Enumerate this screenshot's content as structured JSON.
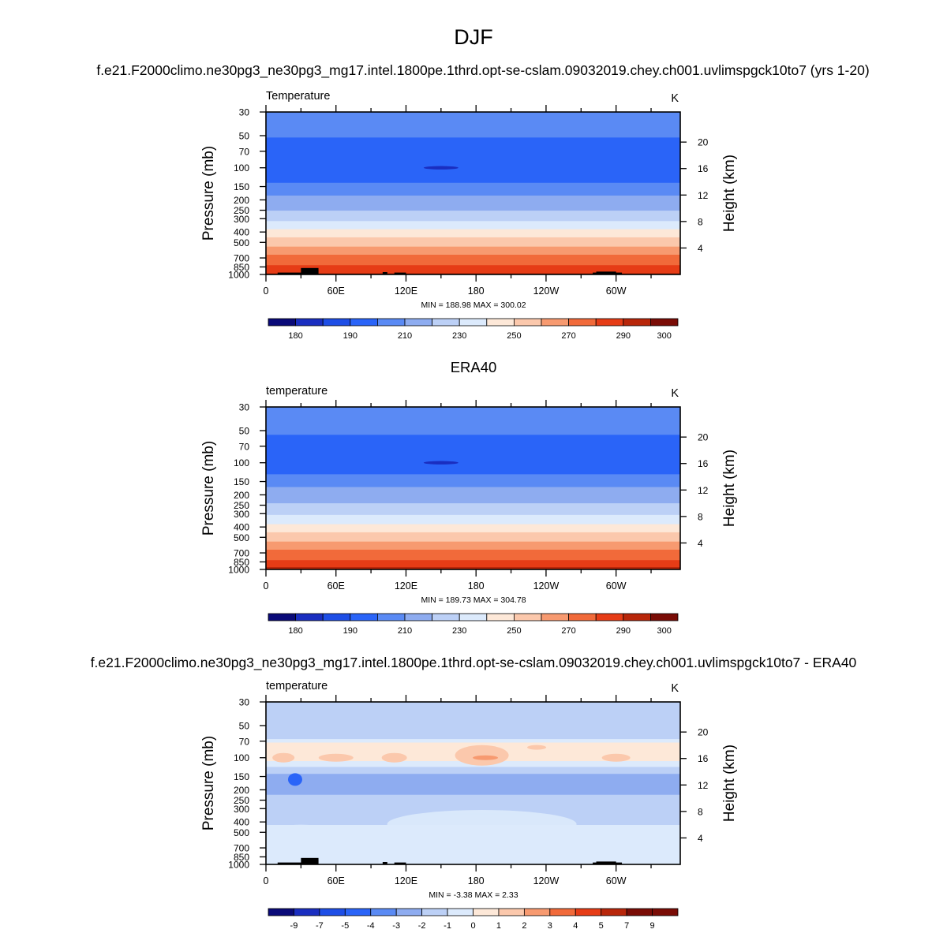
{
  "figure": {
    "season": "DJF",
    "case_title": "f.e21.F2000climo.ne30pg3_ne30pg3_mg17.intel.1800pe.1thrd.opt-se-cslam.09032019.chey.ch001.uvlimspgck10to7 (yrs 1-20)",
    "obs_title": "ERA40",
    "diff_title": "f.e21.F2000climo.ne30pg3_ne30pg3_mg17.intel.1800pe.1thrd.opt-se-cslam.09032019.chey.ch001.uvlimspgck10to7 - ERA40"
  },
  "chart_data": [
    {
      "type": "heatmap",
      "name": "model",
      "variable_label": "Temperature",
      "units": "K",
      "xlabel": "",
      "ylabel": "Pressure (mb)",
      "y2label": "Height (km)",
      "x_ticks": [
        "0",
        "60E",
        "120E",
        "180",
        "120W",
        "60W"
      ],
      "y_ticks": [
        "30",
        "50",
        "70",
        "100",
        "150",
        "200",
        "250",
        "300",
        "400",
        "500",
        "700",
        "850",
        "1000"
      ],
      "y2_ticks": [
        "20",
        "16",
        "12",
        "8",
        "4"
      ],
      "stats_text": "MIN = 188.98  MAX = 300.02",
      "levels": [
        300,
        250,
        200,
        150,
        100,
        70,
        50,
        30
      ],
      "profile": [
        {
          "p": 1000,
          "v": 297
        },
        {
          "p": 900,
          "v": 291
        },
        {
          "p": 850,
          "v": 287
        },
        {
          "p": 700,
          "v": 278
        },
        {
          "p": 600,
          "v": 270
        },
        {
          "p": 500,
          "v": 261
        },
        {
          "p": 400,
          "v": 248
        },
        {
          "p": 350,
          "v": 240
        },
        {
          "p": 300,
          "v": 233
        },
        {
          "p": 250,
          "v": 225
        },
        {
          "p": 200,
          "v": 218
        },
        {
          "p": 150,
          "v": 208
        },
        {
          "p": 120,
          "v": 200
        },
        {
          "p": 100,
          "v": 195
        },
        {
          "p": 80,
          "v": 196
        },
        {
          "p": 70,
          "v": 200
        },
        {
          "p": 55,
          "v": 204
        },
        {
          "p": 45,
          "v": 207
        },
        {
          "p": 35,
          "v": 211
        },
        {
          "p": 30,
          "v": 214
        }
      ]
    },
    {
      "type": "heatmap",
      "name": "obs",
      "variable_label": "temperature",
      "units": "K",
      "xlabel": "",
      "ylabel": "Pressure (mb)",
      "y2label": "Height (km)",
      "x_ticks": [
        "0",
        "60E",
        "120E",
        "180",
        "120W",
        "60W"
      ],
      "y_ticks": [
        "30",
        "50",
        "70",
        "100",
        "150",
        "200",
        "250",
        "300",
        "400",
        "500",
        "700",
        "850",
        "1000"
      ],
      "y2_ticks": [
        "20",
        "16",
        "12",
        "8",
        "4"
      ],
      "stats_text": "MIN = 189.73  MAX = 304.78",
      "levels": [
        300,
        250,
        200,
        150,
        100,
        70,
        50,
        30
      ],
      "profile": [
        {
          "p": 1000,
          "v": 298
        },
        {
          "p": 900,
          "v": 291
        },
        {
          "p": 850,
          "v": 287
        },
        {
          "p": 700,
          "v": 278
        },
        {
          "p": 600,
          "v": 270
        },
        {
          "p": 500,
          "v": 261
        },
        {
          "p": 400,
          "v": 248
        },
        {
          "p": 350,
          "v": 241
        },
        {
          "p": 300,
          "v": 234
        },
        {
          "p": 250,
          "v": 226
        },
        {
          "p": 200,
          "v": 220
        },
        {
          "p": 150,
          "v": 211
        },
        {
          "p": 120,
          "v": 203
        },
        {
          "p": 100,
          "v": 196
        },
        {
          "p": 80,
          "v": 197
        },
        {
          "p": 70,
          "v": 201
        },
        {
          "p": 55,
          "v": 205
        },
        {
          "p": 45,
          "v": 208
        },
        {
          "p": 35,
          "v": 212
        },
        {
          "p": 30,
          "v": 214
        }
      ]
    },
    {
      "type": "heatmap",
      "name": "diff",
      "variable_label": "temperature",
      "units": "K",
      "xlabel": "",
      "ylabel": "Pressure (mb)",
      "y2label": "Height (km)",
      "x_ticks": [
        "0",
        "60E",
        "120E",
        "180",
        "120W",
        "60W"
      ],
      "y_ticks": [
        "30",
        "50",
        "70",
        "100",
        "150",
        "200",
        "250",
        "300",
        "400",
        "500",
        "700",
        "850",
        "1000"
      ],
      "y2_ticks": [
        "20",
        "16",
        "12",
        "8",
        "4"
      ],
      "stats_text": "MIN =  -3.38  MAX =   2.33",
      "levels": [
        300,
        250,
        200,
        150,
        100,
        70,
        50,
        30
      ],
      "profile": [
        {
          "p": 1000,
          "v": -0.5
        },
        {
          "p": 850,
          "v": -0.5
        },
        {
          "p": 700,
          "v": -0.5
        },
        {
          "p": 500,
          "v": -0.6
        },
        {
          "p": 400,
          "v": -1.2
        },
        {
          "p": 300,
          "v": -1.6
        },
        {
          "p": 250,
          "v": -1.8
        },
        {
          "p": 200,
          "v": -2.2
        },
        {
          "p": 150,
          "v": -2.4
        },
        {
          "p": 130,
          "v": -1.5
        },
        {
          "p": 115,
          "v": -0.5
        },
        {
          "p": 100,
          "v": 0.4
        },
        {
          "p": 90,
          "v": 0.5
        },
        {
          "p": 75,
          "v": 0.4
        },
        {
          "p": 65,
          "v": -1.2
        },
        {
          "p": 50,
          "v": -1.5
        },
        {
          "p": 40,
          "v": -1.0
        },
        {
          "p": 34,
          "v": -1.4
        },
        {
          "p": 30,
          "v": -1.6
        }
      ]
    }
  ],
  "colorbars": {
    "temperature": {
      "labels": [
        "180",
        "190",
        "210",
        "230",
        "250",
        "270",
        "290",
        "300"
      ],
      "bounds": [
        175,
        185,
        195,
        205,
        215,
        225,
        235,
        245,
        255,
        265,
        275,
        285,
        295,
        305
      ],
      "colors": [
        "#0a0a78",
        "#1a2ec0",
        "#1e4ee6",
        "#2a64f8",
        "#5a8af4",
        "#8eacf0",
        "#bcd0f6",
        "#dceafc",
        "#fde8d8",
        "#fbc8ac",
        "#f79a70",
        "#f16a3a",
        "#e63c16",
        "#b8260a",
        "#7a0c06"
      ]
    },
    "difference": {
      "labels": [
        "-9",
        "-7",
        "-5",
        "-4",
        "-3",
        "-2",
        "-1",
        "0",
        "1",
        "2",
        "3",
        "4",
        "5",
        "7",
        "9"
      ],
      "bounds": [
        -9,
        -7,
        -5,
        -4,
        -3,
        -2,
        -1,
        0,
        1,
        2,
        3,
        4,
        5,
        7,
        9
      ],
      "colors": [
        "#0a0a78",
        "#1a2ec0",
        "#1e4ee6",
        "#2a64f8",
        "#5a8af4",
        "#8eacf0",
        "#bcd0f6",
        "#dceafc",
        "#fde8d8",
        "#fbc8ac",
        "#f79a70",
        "#f16a3a",
        "#e63c16",
        "#b8260a",
        "#7a0c06",
        "#7a0c06"
      ]
    }
  }
}
